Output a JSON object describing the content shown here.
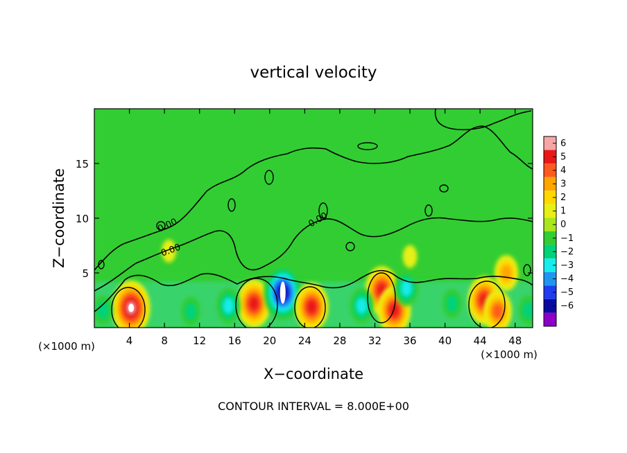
{
  "chart_data": {
    "type": "heatmap",
    "title": "vertical velocity",
    "xlabel": "X−coordinate",
    "ylabel": "Z−coordinate",
    "x_unit_label": "(×1000 m)",
    "xlim": [
      0,
      50
    ],
    "ylim": [
      0,
      20
    ],
    "x_ticks": [
      4,
      8,
      12,
      16,
      20,
      24,
      28,
      32,
      36,
      40,
      44,
      48
    ],
    "y_ticks": [
      5,
      10,
      15
    ],
    "contour_interval_text": "CONTOUR INTERVAL = 8.000E+00",
    "contour_labels": [
      "0.00",
      "0.00",
      "0.00"
    ],
    "colorbar": {
      "levels": [
        6,
        5,
        4,
        3,
        2,
        1,
        0,
        -1,
        -2,
        -3,
        -4,
        -5,
        -6
      ],
      "level_labels": [
        "6",
        "5",
        "4",
        "3",
        "2",
        "1",
        "0",
        "−1",
        "−2",
        "−3",
        "−4",
        "−5",
        "−6"
      ],
      "colors": [
        "#f6a6a6",
        "#e81818",
        "#ff5a1e",
        "#ffa500",
        "#ffd800",
        "#e6f014",
        "#a8e61e",
        "#32cd32",
        "#00d27a",
        "#18ecec",
        "#1e96f0",
        "#1e3cf0",
        "#0a0aa0",
        "#8c00c8"
      ]
    },
    "features": [
      {
        "x": 4.2,
        "z": 1.8,
        "value": 6
      },
      {
        "x": 18.2,
        "z": 2.2,
        "value": 5
      },
      {
        "x": 21.5,
        "z": 3.2,
        "value": -6
      },
      {
        "x": 24.8,
        "z": 1.9,
        "value": 5
      },
      {
        "x": 32.8,
        "z": 3.4,
        "value": 5
      },
      {
        "x": 34.2,
        "z": 1.6,
        "value": 5
      },
      {
        "x": 35.6,
        "z": 3.6,
        "value": -3
      },
      {
        "x": 44.5,
        "z": 2.5,
        "value": 5
      },
      {
        "x": 46.0,
        "z": 1.5,
        "value": 4
      },
      {
        "x": 15.3,
        "z": 2.0,
        "value": -3
      },
      {
        "x": 11.0,
        "z": 1.5,
        "value": -2
      },
      {
        "x": 30.5,
        "z": 2.0,
        "value": -3
      },
      {
        "x": 40.8,
        "z": 2.2,
        "value": -2
      },
      {
        "x": 1.0,
        "z": 1.6,
        "value": -2
      },
      {
        "x": 49.5,
        "z": 1.6,
        "value": -2
      },
      {
        "x": 47.0,
        "z": 5.0,
        "value": 3
      },
      {
        "x": 8.5,
        "z": 7.0,
        "value": 1
      },
      {
        "x": 36.0,
        "z": 6.5,
        "value": 1
      }
    ]
  }
}
